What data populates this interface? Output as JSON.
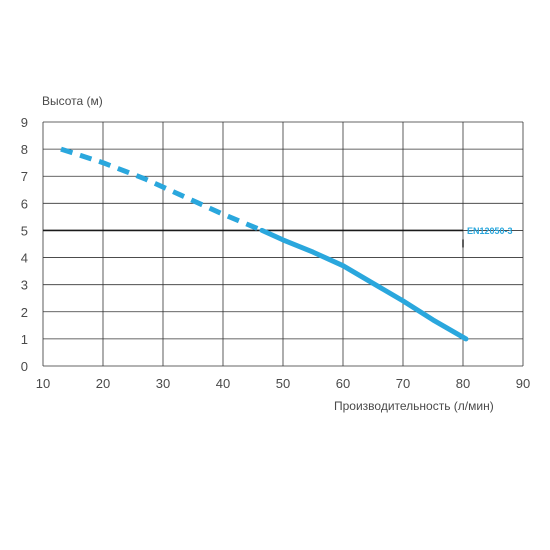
{
  "chart_data": {
    "type": "line",
    "ylabel": "Высота (м)",
    "xlabel": "Производительность (л/мин)",
    "xlim": [
      10,
      90
    ],
    "ylim": [
      0,
      9
    ],
    "x_ticks": [
      "10",
      "20",
      "30",
      "40",
      "50",
      "60",
      "70",
      "80",
      "90"
    ],
    "y_ticks": [
      "0",
      "1",
      "2",
      "3",
      "4",
      "5",
      "6",
      "7",
      "8",
      "9"
    ],
    "grid": true,
    "reference_line": {
      "y": 5,
      "x_range": [
        10,
        80
      ],
      "label": "EN12050-3",
      "color": "#1a1a1a"
    },
    "series": [
      {
        "style": "dashed",
        "color": "#2aa7dd",
        "points": [
          [
            13,
            8.0
          ],
          [
            20,
            7.5
          ],
          [
            27,
            6.9
          ],
          [
            33,
            6.3
          ],
          [
            40,
            5.6
          ],
          [
            46.5,
            5.0
          ]
        ]
      },
      {
        "style": "solid",
        "color": "#2aa7dd",
        "points": [
          [
            46.5,
            5.0
          ],
          [
            50,
            4.65
          ],
          [
            55,
            4.2
          ],
          [
            60,
            3.7
          ],
          [
            65,
            3.05
          ],
          [
            70,
            2.4
          ],
          [
            75,
            1.7
          ],
          [
            80.5,
            1.0
          ]
        ]
      }
    ]
  }
}
